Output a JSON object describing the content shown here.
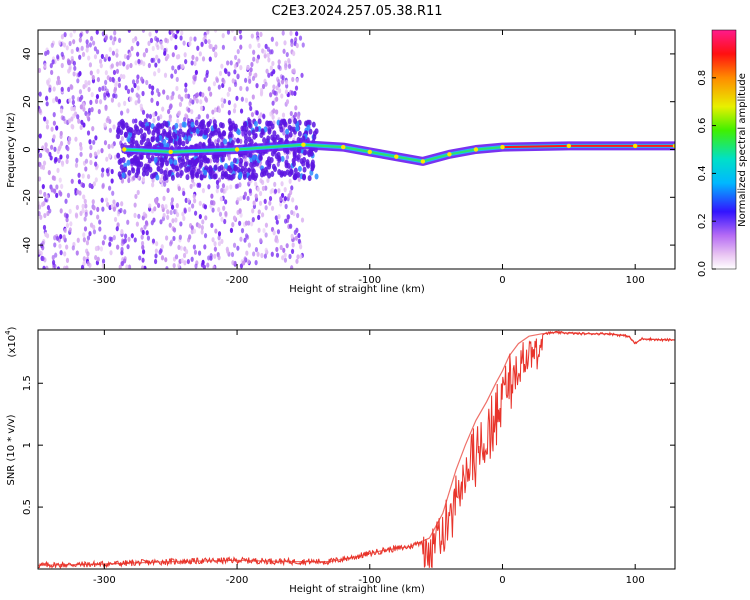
{
  "title": "C2E3.2024.257.05.38.R11",
  "colors": {
    "snr_line": "#e8332a",
    "spectrogram_purple": "#6a1cf0",
    "spectrogram_green": "#2ee36b",
    "spectrogram_red": "#ff1a1a"
  },
  "chart_data": [
    {
      "type": "heatmap",
      "xlabel": "Height of straight line (km)",
      "ylabel": "Frequency (Hz)",
      "xlim": [
        -350,
        130
      ],
      "ylim": [
        -50,
        50
      ],
      "x_ticks": [
        -300,
        -200,
        -100,
        0,
        100
      ],
      "y_ticks": [
        -40,
        -20,
        0,
        20,
        40
      ],
      "colorbar": {
        "label": "Normalized spectral amplitude",
        "range": [
          0.0,
          1.0
        ],
        "ticks": [
          0.0,
          0.2,
          0.4,
          0.6,
          0.8
        ]
      },
      "signal_trace": [
        {
          "x": -285,
          "y": 0
        },
        {
          "x": -250,
          "y": -1
        },
        {
          "x": -200,
          "y": 0
        },
        {
          "x": -150,
          "y": 2
        },
        {
          "x": -120,
          "y": 1
        },
        {
          "x": -100,
          "y": -1
        },
        {
          "x": -80,
          "y": -3
        },
        {
          "x": -60,
          "y": -5
        },
        {
          "x": -40,
          "y": -2
        },
        {
          "x": -20,
          "y": 0
        },
        {
          "x": 0,
          "y": 1
        },
        {
          "x": 50,
          "y": 1.5
        },
        {
          "x": 100,
          "y": 1.5
        },
        {
          "x": 130,
          "y": 1.5
        }
      ]
    },
    {
      "type": "line",
      "xlabel": "Height of straight line (km)",
      "ylabel": "SNR (10 * v/v)",
      "y_scale_note": "(x10",
      "y_scale_exp": "4",
      "xlim": [
        -350,
        130
      ],
      "ylim": [
        0,
        1.93
      ],
      "x_ticks": [
        -300,
        -200,
        -100,
        0,
        100
      ],
      "y_ticks": [
        0.5,
        1.0,
        1.5
      ],
      "series": [
        {
          "x": [
            -350,
            -300,
            -250,
            -200,
            -160,
            -130,
            -110,
            -90,
            -70,
            -55,
            -45,
            -35,
            -28,
            -20,
            -12,
            -5,
            0,
            5,
            12,
            20,
            30,
            40,
            60,
            80,
            95,
            100,
            105,
            120,
            130
          ],
          "y": [
            0.03,
            0.04,
            0.06,
            0.07,
            0.06,
            0.06,
            0.1,
            0.15,
            0.18,
            0.25,
            0.45,
            0.8,
            1.0,
            1.2,
            1.35,
            1.5,
            1.6,
            1.72,
            1.82,
            1.88,
            1.9,
            1.91,
            1.9,
            1.9,
            1.88,
            1.82,
            1.86,
            1.85,
            1.85
          ]
        }
      ]
    }
  ]
}
